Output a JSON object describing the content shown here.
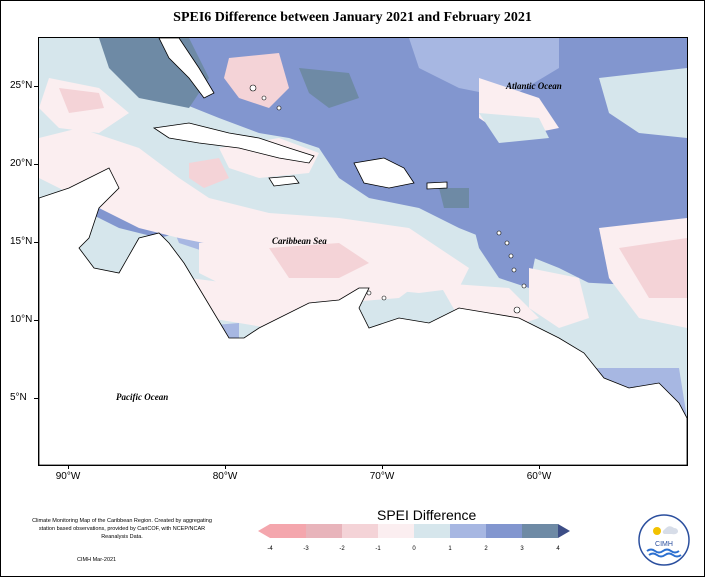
{
  "title": "SPEI6 Difference between January 2021 and February 2021",
  "map": {
    "y_labels": [
      "25°N",
      "20°N",
      "15°N",
      "10°N",
      "5°N"
    ],
    "x_labels": [
      "90°W",
      "80°W",
      "70°W",
      "60°W"
    ],
    "region_labels": {
      "atlantic": "Atlantic Ocean",
      "caribbean": "Caribbean Sea",
      "pacific": "Pacific Ocean"
    }
  },
  "legend": {
    "title": "SPEI Difference",
    "ticks": [
      "-4",
      "-3",
      "-2",
      "-1",
      "0",
      "1",
      "2",
      "3",
      "4"
    ],
    "colors": [
      "#f4a6ad",
      "#e8b4bb",
      "#f4d3d7",
      "#fbeef0",
      "#d6e6ec",
      "#a7b7e2",
      "#8296cf",
      "#6e8aa5",
      "#3d4e86"
    ]
  },
  "credits": {
    "text": "Climate Monitoring Map of the Caribbean Region. Created by aggregating station based observations, provided by CariCOF, with NCEP/NCAR Reanalysis Data.",
    "date": "CIMH Mar-2021"
  },
  "logo": {
    "text": "CIMH"
  }
}
